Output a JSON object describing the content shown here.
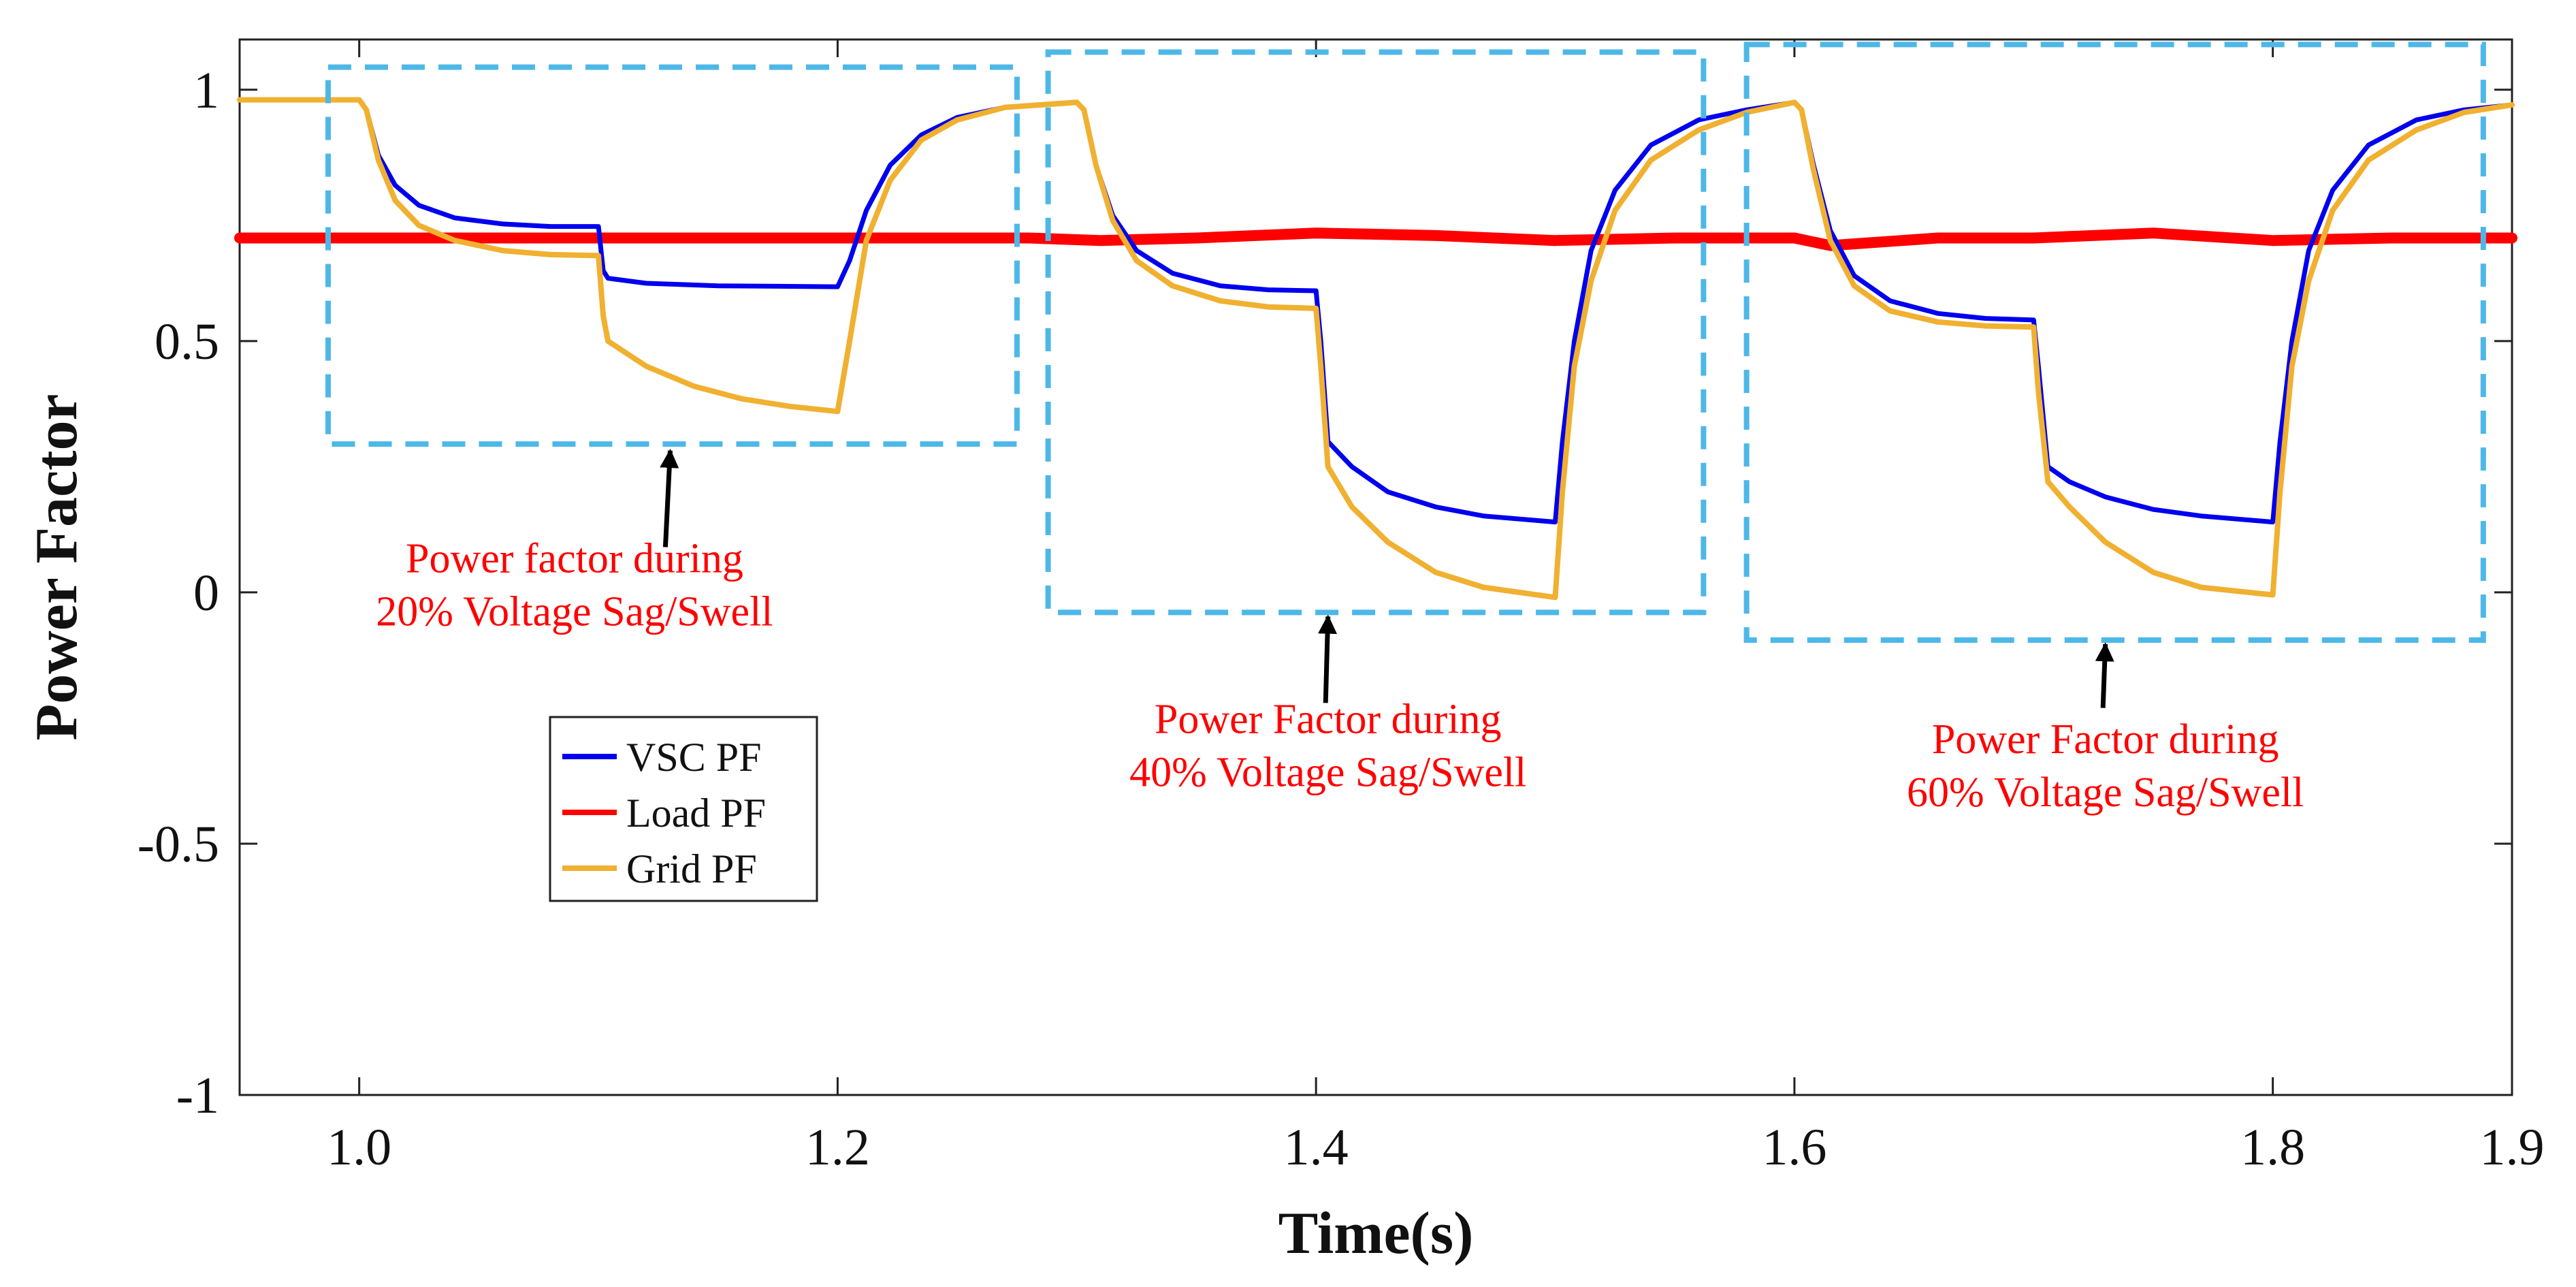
{
  "chart_data": {
    "type": "line",
    "title": "",
    "xlabel": "Time(s)",
    "ylabel": "Power Factor",
    "xlim": [
      0.95,
      1.9
    ],
    "ylim": [
      -1,
      1.1
    ],
    "x_ticks": [
      1.0,
      1.2,
      1.4,
      1.6,
      1.8,
      1.9
    ],
    "x_tick_labels": [
      "1.0",
      "1.2",
      "1.4",
      "1.6",
      "1.8",
      "1.9"
    ],
    "y_ticks": [
      1,
      0.5,
      0,
      -0.5,
      -1
    ],
    "y_tick_labels": [
      "1",
      "0.5",
      "0",
      "-0.5",
      "-1"
    ],
    "grid": false,
    "legend_position": "lower-left",
    "series": [
      {
        "name": "VSC PF",
        "color": "#0000ee",
        "points": [
          [
            0.95,
            0.98
          ],
          [
            1.0,
            0.98
          ],
          [
            1.003,
            0.96
          ],
          [
            1.008,
            0.87
          ],
          [
            1.015,
            0.81
          ],
          [
            1.025,
            0.77
          ],
          [
            1.04,
            0.745
          ],
          [
            1.06,
            0.733
          ],
          [
            1.08,
            0.728
          ],
          [
            1.1,
            0.728
          ],
          [
            1.102,
            0.64
          ],
          [
            1.104,
            0.625
          ],
          [
            1.12,
            0.615
          ],
          [
            1.15,
            0.61
          ],
          [
            1.2,
            0.608
          ],
          [
            1.205,
            0.66
          ],
          [
            1.212,
            0.76
          ],
          [
            1.222,
            0.85
          ],
          [
            1.235,
            0.91
          ],
          [
            1.25,
            0.945
          ],
          [
            1.27,
            0.965
          ],
          [
            1.3,
            0.975
          ],
          [
            1.303,
            0.96
          ],
          [
            1.308,
            0.85
          ],
          [
            1.315,
            0.75
          ],
          [
            1.325,
            0.68
          ],
          [
            1.34,
            0.635
          ],
          [
            1.36,
            0.61
          ],
          [
            1.38,
            0.602
          ],
          [
            1.4,
            0.6
          ],
          [
            1.402,
            0.5
          ],
          [
            1.405,
            0.3
          ],
          [
            1.415,
            0.25
          ],
          [
            1.43,
            0.2
          ],
          [
            1.45,
            0.17
          ],
          [
            1.47,
            0.152
          ],
          [
            1.5,
            0.14
          ],
          [
            1.503,
            0.3
          ],
          [
            1.508,
            0.5
          ],
          [
            1.515,
            0.68
          ],
          [
            1.525,
            0.8
          ],
          [
            1.54,
            0.89
          ],
          [
            1.56,
            0.94
          ],
          [
            1.58,
            0.96
          ],
          [
            1.6,
            0.975
          ],
          [
            1.603,
            0.96
          ],
          [
            1.608,
            0.85
          ],
          [
            1.615,
            0.72
          ],
          [
            1.625,
            0.63
          ],
          [
            1.64,
            0.58
          ],
          [
            1.66,
            0.555
          ],
          [
            1.68,
            0.545
          ],
          [
            1.7,
            0.542
          ],
          [
            1.702,
            0.45
          ],
          [
            1.706,
            0.25
          ],
          [
            1.715,
            0.22
          ],
          [
            1.73,
            0.19
          ],
          [
            1.75,
            0.165
          ],
          [
            1.77,
            0.152
          ],
          [
            1.8,
            0.14
          ],
          [
            1.803,
            0.3
          ],
          [
            1.808,
            0.5
          ],
          [
            1.815,
            0.68
          ],
          [
            1.825,
            0.8
          ],
          [
            1.84,
            0.89
          ],
          [
            1.86,
            0.94
          ],
          [
            1.88,
            0.96
          ],
          [
            1.9,
            0.97
          ]
        ]
      },
      {
        "name": "Load PF",
        "color": "#ff0000",
        "points": [
          [
            0.95,
            0.705
          ],
          [
            1.0,
            0.705
          ],
          [
            1.1,
            0.705
          ],
          [
            1.2,
            0.705
          ],
          [
            1.28,
            0.705
          ],
          [
            1.31,
            0.7
          ],
          [
            1.35,
            0.705
          ],
          [
            1.4,
            0.715
          ],
          [
            1.45,
            0.71
          ],
          [
            1.5,
            0.7
          ],
          [
            1.55,
            0.705
          ],
          [
            1.6,
            0.705
          ],
          [
            1.615,
            0.69
          ],
          [
            1.63,
            0.695
          ],
          [
            1.66,
            0.705
          ],
          [
            1.7,
            0.705
          ],
          [
            1.75,
            0.715
          ],
          [
            1.8,
            0.7
          ],
          [
            1.85,
            0.705
          ],
          [
            1.9,
            0.705
          ]
        ]
      },
      {
        "name": "Grid PF",
        "color": "#f0b030",
        "points": [
          [
            0.95,
            0.98
          ],
          [
            1.0,
            0.98
          ],
          [
            1.003,
            0.96
          ],
          [
            1.008,
            0.86
          ],
          [
            1.015,
            0.78
          ],
          [
            1.025,
            0.73
          ],
          [
            1.04,
            0.7
          ],
          [
            1.06,
            0.68
          ],
          [
            1.08,
            0.672
          ],
          [
            1.1,
            0.67
          ],
          [
            1.102,
            0.55
          ],
          [
            1.104,
            0.5
          ],
          [
            1.12,
            0.45
          ],
          [
            1.14,
            0.41
          ],
          [
            1.16,
            0.385
          ],
          [
            1.18,
            0.37
          ],
          [
            1.2,
            0.36
          ],
          [
            1.205,
            0.5
          ],
          [
            1.212,
            0.7
          ],
          [
            1.222,
            0.82
          ],
          [
            1.235,
            0.9
          ],
          [
            1.25,
            0.94
          ],
          [
            1.27,
            0.965
          ],
          [
            1.3,
            0.975
          ],
          [
            1.303,
            0.96
          ],
          [
            1.308,
            0.85
          ],
          [
            1.315,
            0.74
          ],
          [
            1.325,
            0.66
          ],
          [
            1.34,
            0.61
          ],
          [
            1.36,
            0.58
          ],
          [
            1.38,
            0.568
          ],
          [
            1.4,
            0.565
          ],
          [
            1.402,
            0.45
          ],
          [
            1.405,
            0.25
          ],
          [
            1.415,
            0.17
          ],
          [
            1.43,
            0.1
          ],
          [
            1.45,
            0.04
          ],
          [
            1.47,
            0.01
          ],
          [
            1.5,
            -0.01
          ],
          [
            1.503,
            0.2
          ],
          [
            1.508,
            0.45
          ],
          [
            1.515,
            0.62
          ],
          [
            1.525,
            0.76
          ],
          [
            1.54,
            0.86
          ],
          [
            1.56,
            0.92
          ],
          [
            1.58,
            0.955
          ],
          [
            1.6,
            0.975
          ],
          [
            1.603,
            0.96
          ],
          [
            1.608,
            0.84
          ],
          [
            1.615,
            0.7
          ],
          [
            1.625,
            0.61
          ],
          [
            1.64,
            0.56
          ],
          [
            1.66,
            0.538
          ],
          [
            1.68,
            0.53
          ],
          [
            1.7,
            0.528
          ],
          [
            1.702,
            0.4
          ],
          [
            1.706,
            0.22
          ],
          [
            1.715,
            0.17
          ],
          [
            1.73,
            0.1
          ],
          [
            1.75,
            0.04
          ],
          [
            1.77,
            0.01
          ],
          [
            1.8,
            -0.005
          ],
          [
            1.803,
            0.2
          ],
          [
            1.808,
            0.45
          ],
          [
            1.815,
            0.62
          ],
          [
            1.825,
            0.76
          ],
          [
            1.84,
            0.86
          ],
          [
            1.86,
            0.92
          ],
          [
            1.88,
            0.955
          ],
          [
            1.9,
            0.97
          ]
        ]
      }
    ],
    "annotations": [
      {
        "lines": [
          "Power factor during",
          "20% Voltage Sag/Swell"
        ],
        "box_x": [
          0.987,
          1.275
        ],
        "box_y": [
          0.295,
          1.045
        ],
        "arrow_tip": [
          1.13,
          0.29
        ],
        "arrow_tail": [
          1.128,
          0.09
        ],
        "text_at": [
          1.09,
          0.04
        ]
      },
      {
        "lines": [
          "Power Factor during",
          "40% Voltage Sag/Swell"
        ],
        "box_x": [
          1.288,
          1.562
        ],
        "box_y": [
          -0.04,
          1.075
        ],
        "arrow_tip": [
          1.405,
          -0.04
        ],
        "arrow_tail": [
          1.404,
          -0.22
        ],
        "text_at": [
          1.405,
          -0.28
        ]
      },
      {
        "lines": [
          "Power Factor during",
          "60% Voltage Sag/Swell"
        ],
        "box_x": [
          1.58,
          1.888
        ],
        "box_y": [
          -0.095,
          1.09
        ],
        "arrow_tip": [
          1.73,
          -0.095
        ],
        "arrow_tail": [
          1.729,
          -0.23
        ],
        "text_at": [
          1.73,
          -0.32
        ]
      }
    ],
    "annotation_color": "#ff0000",
    "box_color": "#4db8e8"
  }
}
